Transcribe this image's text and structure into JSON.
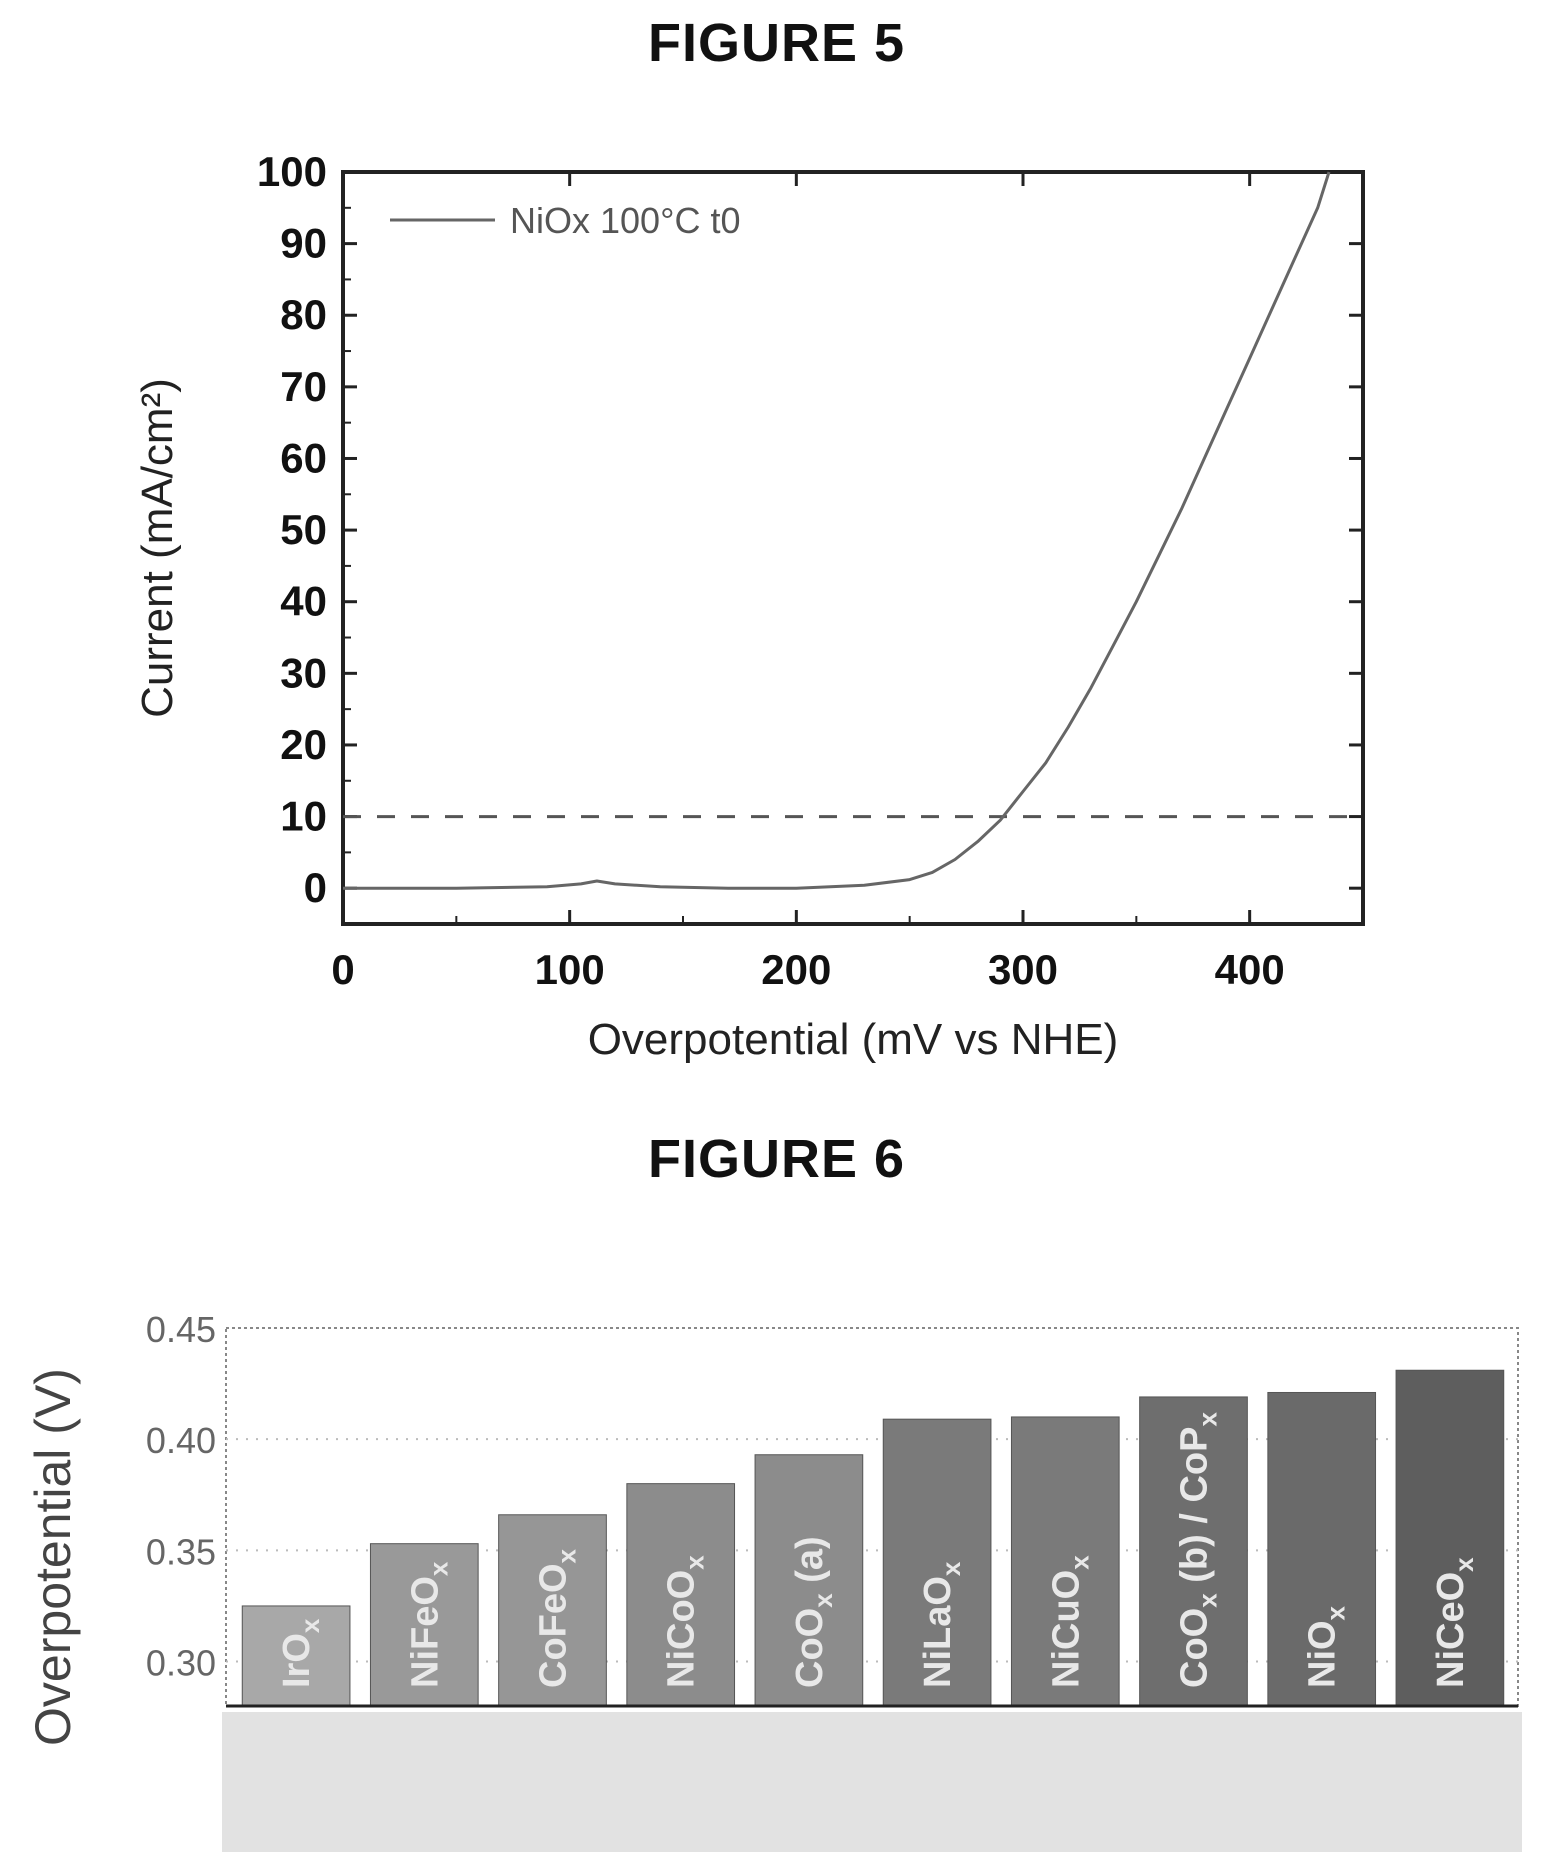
{
  "figure5": {
    "title": "FIGURE 5",
    "chart_data": {
      "type": "line",
      "xlabel": "Overpotential (mV vs NHE)",
      "ylabel": "Current (mA/cm²)",
      "xlim": [
        0,
        450
      ],
      "ylim": [
        -5,
        100
      ],
      "xticks": [
        0,
        100,
        200,
        300,
        400
      ],
      "yticks": [
        0,
        10,
        20,
        30,
        40,
        50,
        60,
        70,
        80,
        90,
        100
      ],
      "legend_position": "top-left",
      "reference_line": {
        "y": 10,
        "style": "dashed"
      },
      "series": [
        {
          "name": "NiOx 100°C t0",
          "x": [
            0,
            50,
            90,
            105,
            112,
            120,
            140,
            170,
            200,
            230,
            250,
            260,
            270,
            280,
            290,
            300,
            310,
            320,
            330,
            340,
            350,
            360,
            370,
            380,
            390,
            400,
            410,
            420,
            430,
            435
          ],
          "y": [
            0,
            0,
            0.2,
            0.6,
            1.0,
            0.6,
            0.2,
            0,
            0,
            0.4,
            1.2,
            2.2,
            4.0,
            6.5,
            9.5,
            13.5,
            17.5,
            22.5,
            28,
            34,
            40,
            46.5,
            53,
            60,
            67,
            74,
            81,
            88,
            95,
            100
          ]
        }
      ]
    }
  },
  "figure6": {
    "title": "FIGURE 6",
    "chart_data": {
      "type": "bar",
      "ylabel": "Overpotential (V)",
      "ylim": [
        0.28,
        0.45
      ],
      "yticks": [
        0.3,
        0.35,
        0.4,
        0.45
      ],
      "grid": true,
      "categories": [
        "IrOx",
        "NiFeOx",
        "CoFeOx",
        "NiCoOx",
        "CoOx (a)",
        "NiLaOx",
        "NiCuOx",
        "CoOx (b) / CoPx",
        "NiOx",
        "NiCeOx"
      ],
      "category_labels": [
        {
          "main": "IrO",
          "sub": "x",
          "rest": ""
        },
        {
          "main": "NiFeO",
          "sub": "x",
          "rest": ""
        },
        {
          "main": "CoFeO",
          "sub": "x",
          "rest": ""
        },
        {
          "main": "NiCoO",
          "sub": "x",
          "rest": ""
        },
        {
          "main": "CoO",
          "sub": "x",
          "rest": " (a)"
        },
        {
          "main": "NiLaO",
          "sub": "x",
          "rest": ""
        },
        {
          "main": "NiCuO",
          "sub": "x",
          "rest": ""
        },
        {
          "main": "CoO",
          "sub": "x",
          "rest": " (b) / CoP",
          "sub2": "x"
        },
        {
          "main": "NiO",
          "sub": "x",
          "rest": ""
        },
        {
          "main": "NiCeO",
          "sub": "x",
          "rest": ""
        }
      ],
      "values": [
        0.325,
        0.353,
        0.366,
        0.38,
        0.393,
        0.409,
        0.41,
        0.419,
        0.421,
        0.431
      ],
      "colors": [
        "#a8a8a8",
        "#999999",
        "#969696",
        "#8c8c8c",
        "#8c8c8c",
        "#7a7a7a",
        "#7a7a7a",
        "#6e6e6e",
        "#6a6a6a",
        "#5e5e5e"
      ]
    }
  }
}
